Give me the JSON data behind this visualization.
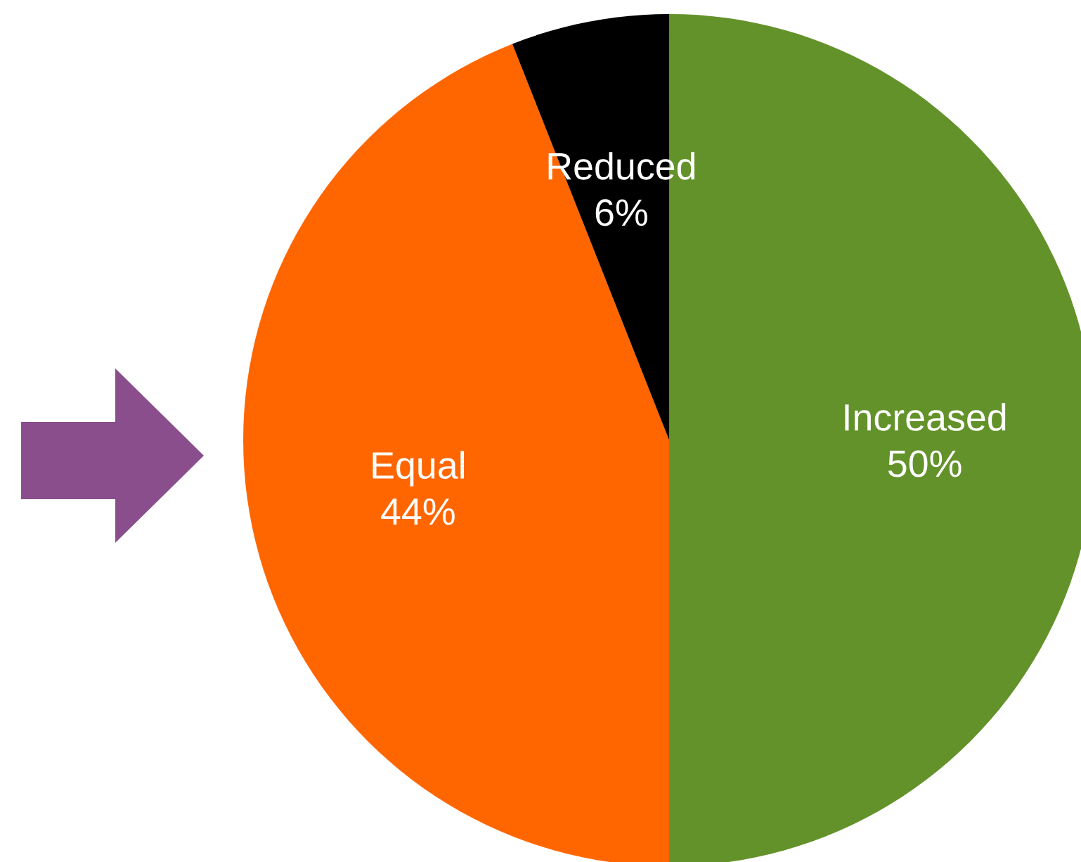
{
  "chart_data": {
    "type": "pie",
    "categories": [
      "Increased",
      "Equal",
      "Reduced"
    ],
    "values": [
      50,
      44,
      6
    ],
    "value_labels": [
      "50%",
      "44%",
      "6%"
    ],
    "colors": [
      "#63922a",
      "#ff6600",
      "#000000"
    ]
  }
}
